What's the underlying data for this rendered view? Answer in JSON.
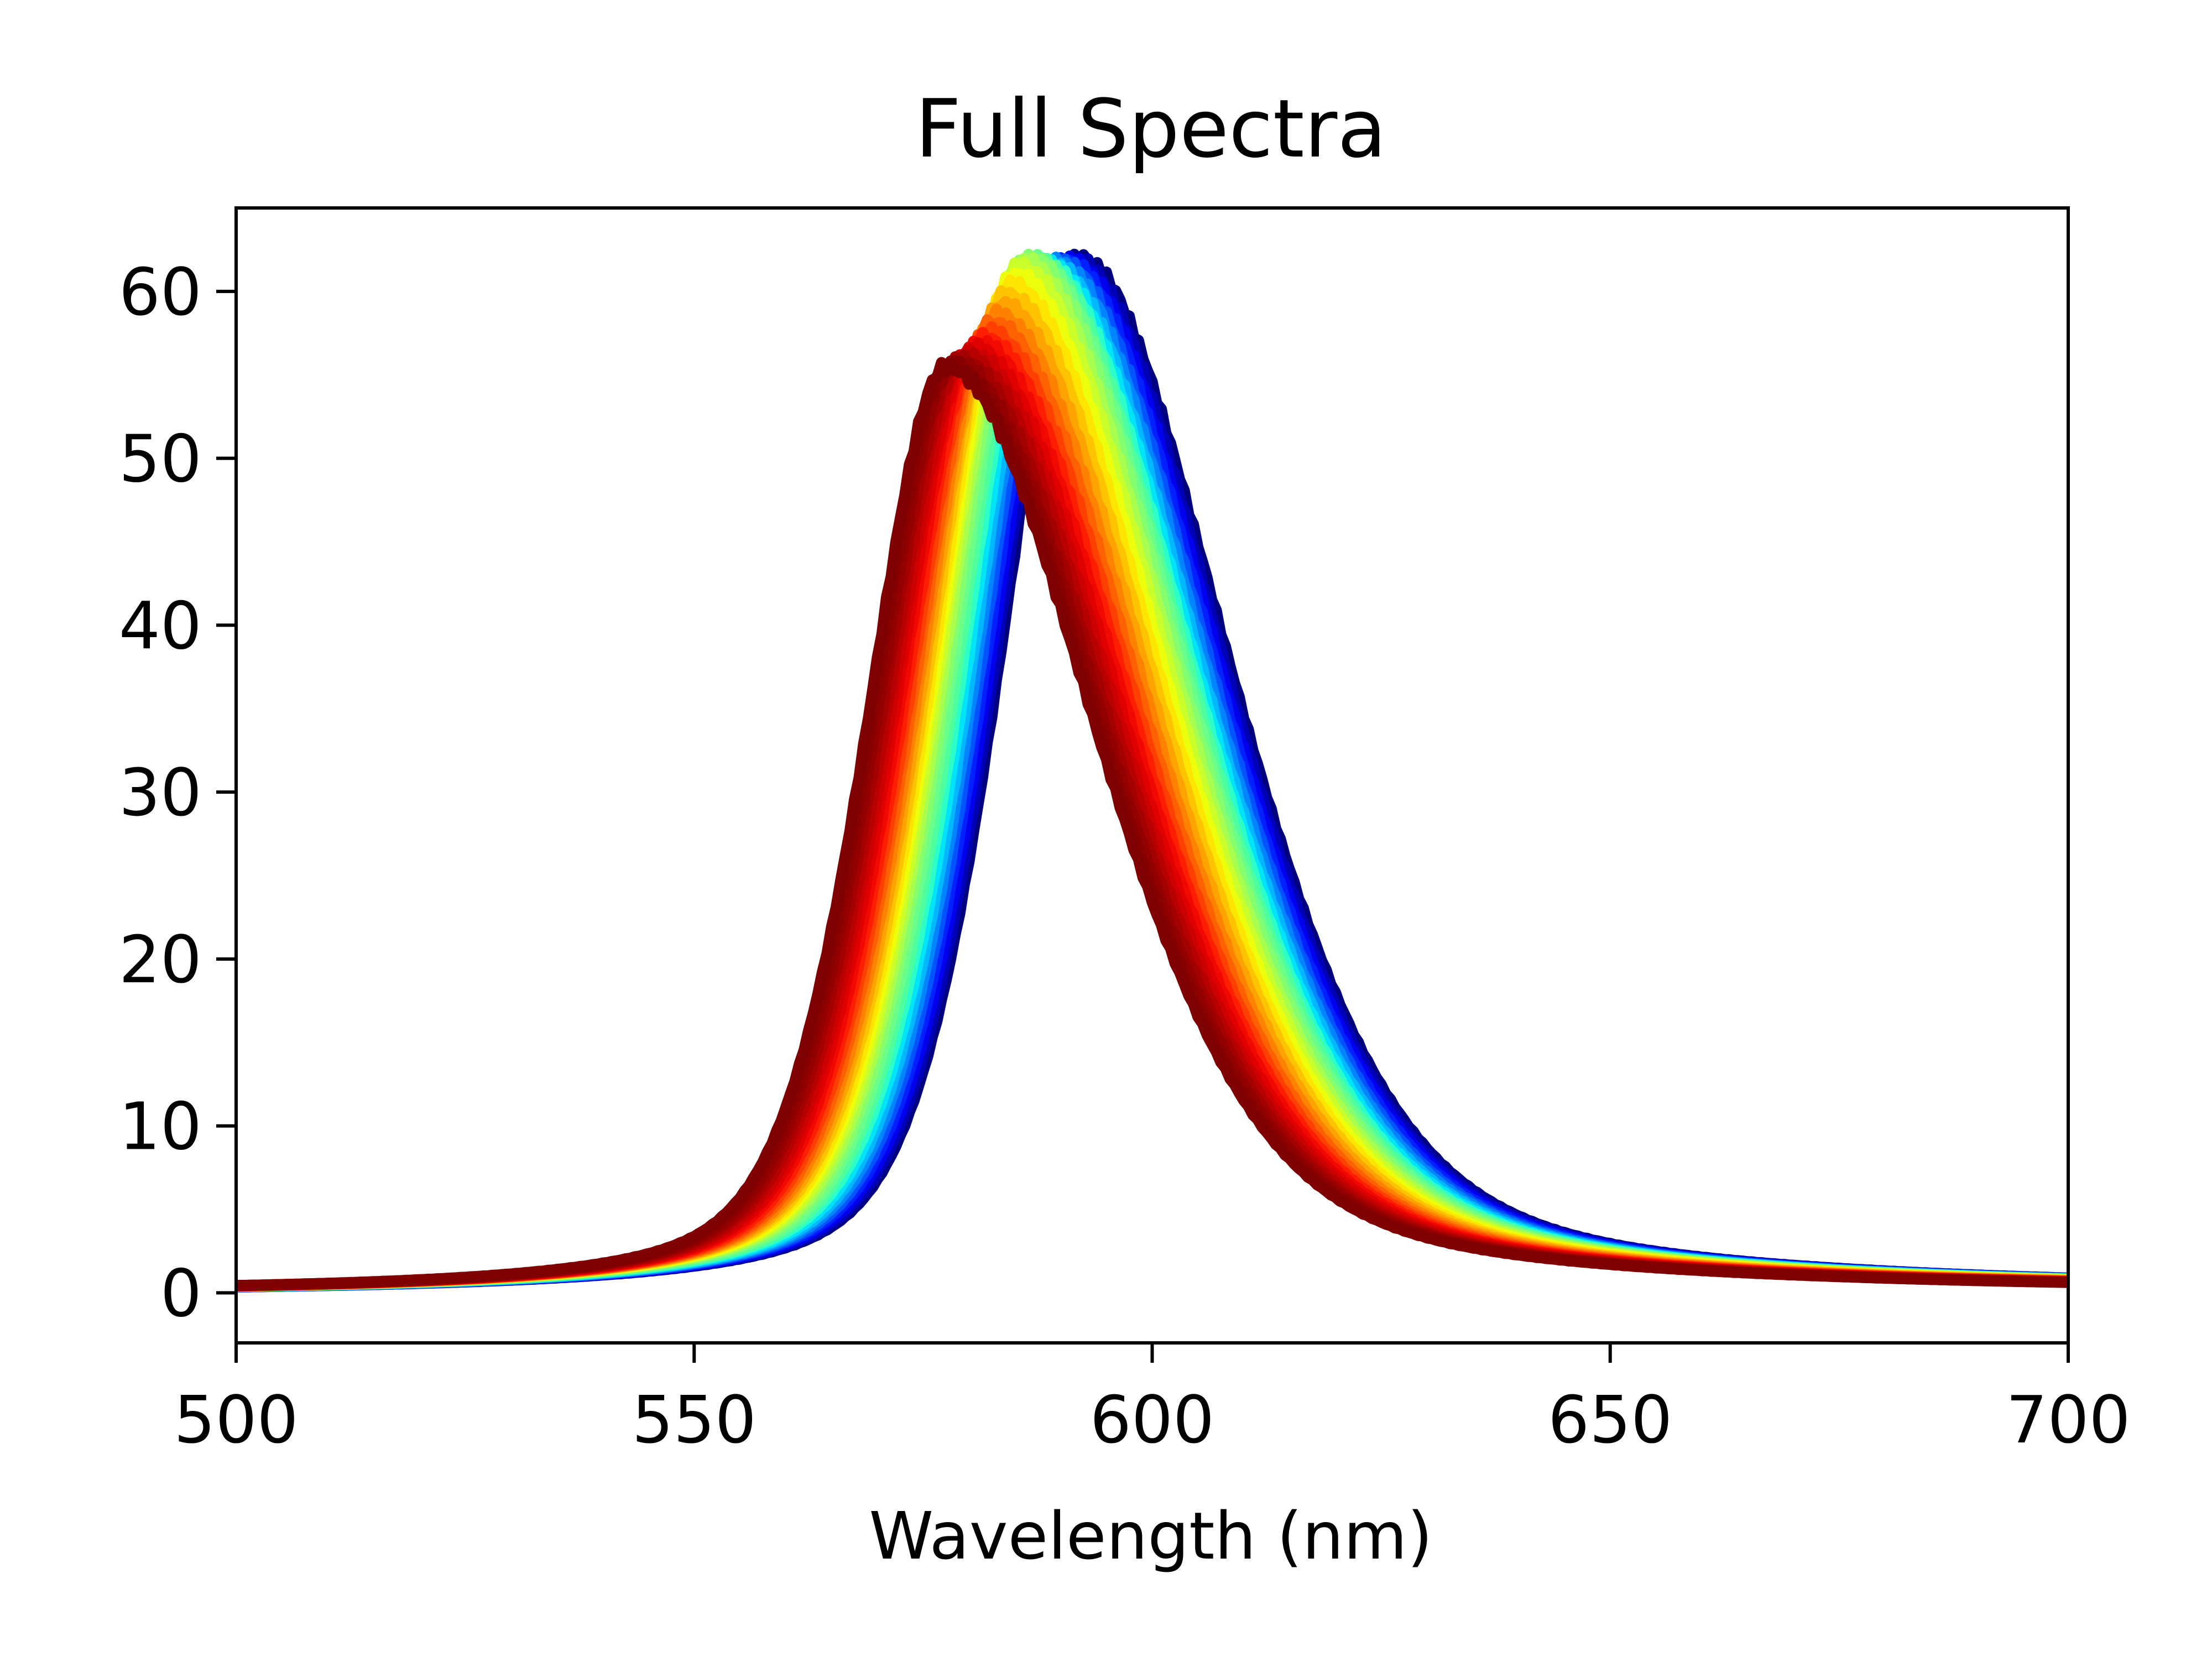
{
  "chart_data": {
    "type": "line",
    "title": "Full Spectra",
    "xlabel": "Wavelength (nm)",
    "ylabel": "",
    "xlim": [
      500,
      700
    ],
    "ylim": [
      -3,
      65
    ],
    "xticks": [
      500,
      550,
      600,
      650,
      700
    ],
    "yticks": [
      0,
      10,
      20,
      30,
      40,
      50,
      60
    ],
    "grid": false,
    "legend": "none",
    "colormap": "jet",
    "series_count": 30,
    "series_order": "first series drawn blue (peak ~592 nm, ~62), last series drawn dark red (peak ~578 nm, ~55)",
    "series": [
      {
        "peak_x": 592.0,
        "peak_y": 62.0,
        "color": "#00007f"
      },
      {
        "peak_x": 591.5,
        "peak_y": 61.9,
        "color": "#0000b6"
      },
      {
        "peak_x": 591.0,
        "peak_y": 61.8,
        "color": "#0000ee"
      },
      {
        "peak_x": 590.5,
        "peak_y": 61.8,
        "color": "#0020ff"
      },
      {
        "peak_x": 590.0,
        "peak_y": 61.7,
        "color": "#0054ff"
      },
      {
        "peak_x": 589.5,
        "peak_y": 61.7,
        "color": "#0084ff"
      },
      {
        "peak_x": 589.0,
        "peak_y": 61.6,
        "color": "#00b8ff"
      },
      {
        "peak_x": 588.5,
        "peak_y": 61.6,
        "color": "#00e4f8"
      },
      {
        "peak_x": 588.0,
        "peak_y": 61.7,
        "color": "#2cffca"
      },
      {
        "peak_x": 587.5,
        "peak_y": 61.8,
        "color": "#4eff9f"
      },
      {
        "peak_x": 587.0,
        "peak_y": 61.9,
        "color": "#6aff8b"
      },
      {
        "peak_x": 586.5,
        "peak_y": 62.0,
        "color": "#86ff6f"
      },
      {
        "peak_x": 586.0,
        "peak_y": 61.8,
        "color": "#a8ff4e"
      },
      {
        "peak_x": 585.5,
        "peak_y": 61.5,
        "color": "#caff2c"
      },
      {
        "peak_x": 585.0,
        "peak_y": 61.0,
        "color": "#ecff0b"
      },
      {
        "peak_x": 584.5,
        "peak_y": 60.4,
        "color": "#ffe600"
      },
      {
        "peak_x": 584.0,
        "peak_y": 59.8,
        "color": "#ffc400"
      },
      {
        "peak_x": 583.5,
        "peak_y": 59.2,
        "color": "#ffa300"
      },
      {
        "peak_x": 583.0,
        "peak_y": 58.6,
        "color": "#ff8200"
      },
      {
        "peak_x": 582.5,
        "peak_y": 58.1,
        "color": "#ff6100"
      },
      {
        "peak_x": 582.0,
        "peak_y": 57.6,
        "color": "#ff4000"
      },
      {
        "peak_x": 581.5,
        "peak_y": 57.2,
        "color": "#ff1e00"
      },
      {
        "peak_x": 581.0,
        "peak_y": 56.9,
        "color": "#f10800"
      },
      {
        "peak_x": 580.5,
        "peak_y": 56.6,
        "color": "#e00000"
      },
      {
        "peak_x": 580.0,
        "peak_y": 56.3,
        "color": "#cc0000"
      },
      {
        "peak_x": 579.5,
        "peak_y": 56.1,
        "color": "#b80000"
      },
      {
        "peak_x": 579.0,
        "peak_y": 55.9,
        "color": "#a40000"
      },
      {
        "peak_x": 578.5,
        "peak_y": 55.7,
        "color": "#940000"
      },
      {
        "peak_x": 578.0,
        "peak_y": 55.6,
        "color": "#880000"
      },
      {
        "peak_x": 577.5,
        "peak_y": 55.5,
        "color": "#7f0000"
      }
    ],
    "line_shape": "skewed peak: rise width ~9 nm, fall width ~17 nm, baseline 0"
  }
}
